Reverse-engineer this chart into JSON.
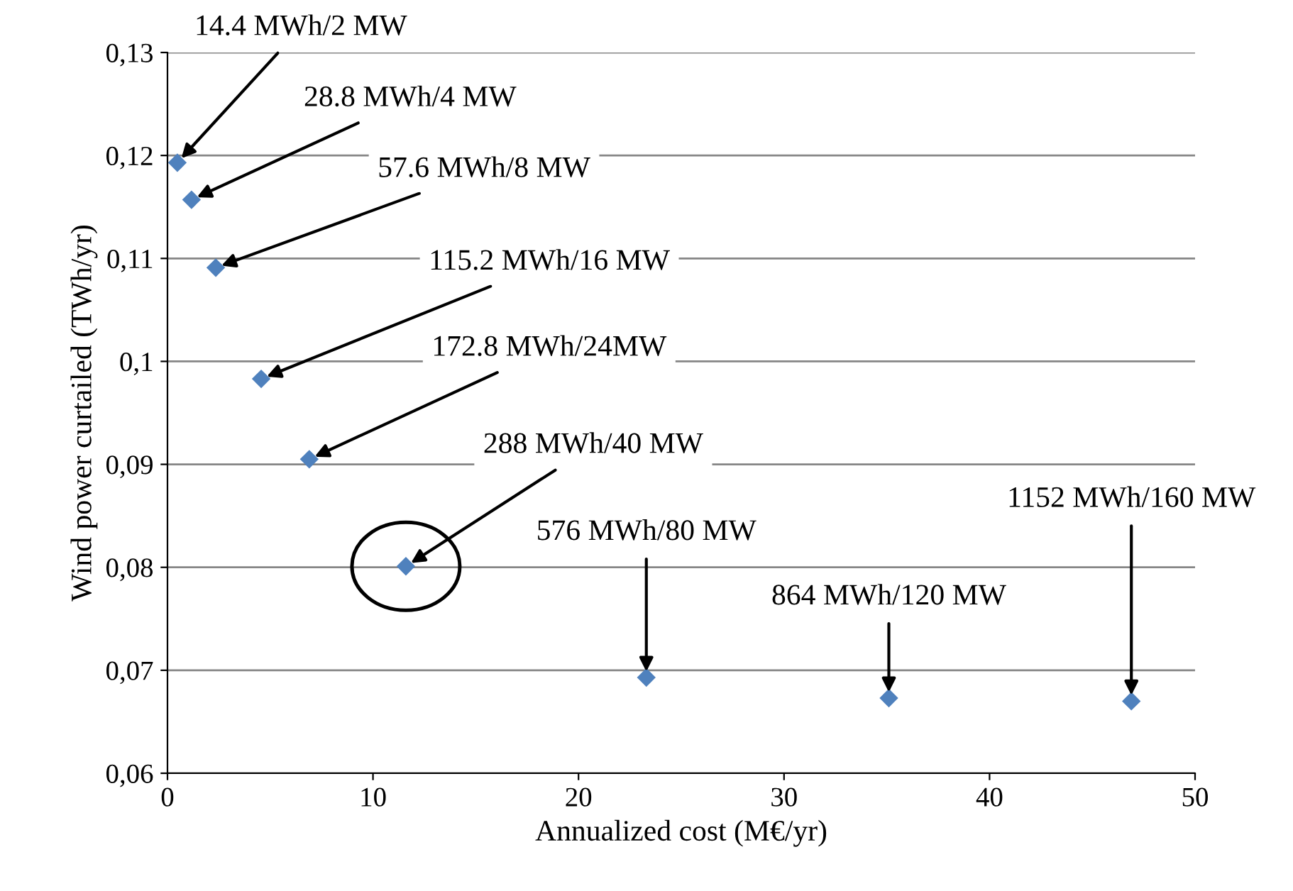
{
  "chart_data": {
    "type": "scatter",
    "xlabel": "Annualized cost (M€/yr)",
    "ylabel": "Wind power curtailed (TWh/yr)",
    "x": [
      0.48,
      1.17,
      2.35,
      4.56,
      6.9,
      11.6,
      23.3,
      35.1,
      46.9
    ],
    "series": [
      {
        "color": "#4f81bd",
        "values": [
          0.1193,
          0.1157,
          0.1091,
          0.0983,
          0.0905,
          0.0801,
          0.0693,
          0.0673,
          0.067
        ]
      }
    ],
    "marker": "diamond",
    "grid": "y",
    "xlim": [
      0,
      50
    ],
    "xticks": [
      0,
      10,
      20,
      30,
      40,
      50
    ],
    "ylim": [
      0.06,
      0.13
    ],
    "yticks": [
      {
        "value": 0.06,
        "label": "0,06"
      },
      {
        "value": 0.07,
        "label": "0,07"
      },
      {
        "value": 0.08,
        "label": "0,08"
      },
      {
        "value": 0.09,
        "label": "0,09"
      },
      {
        "value": 0.1,
        "label": "0,1"
      },
      {
        "value": 0.11,
        "label": "0,11"
      },
      {
        "value": 0.12,
        "label": "0,12"
      },
      {
        "value": 0.13,
        "label": "0,13"
      }
    ],
    "annotations": [
      {
        "text": "14.4 MWh/2 MW",
        "x": 0.48,
        "y": 0.1193
      },
      {
        "text": "28.8 MWh/4 MW",
        "x": 1.17,
        "y": 0.1157
      },
      {
        "text": "57.6 MWh/8 MW",
        "x": 2.35,
        "y": 0.1091
      },
      {
        "text": "115.2 MWh/16 MW",
        "x": 4.56,
        "y": 0.0983
      },
      {
        "text": "172.8 MWh/24MW",
        "x": 6.9,
        "y": 0.0905
      },
      {
        "text": "288 MWh/40 MW",
        "x": 11.6,
        "y": 0.0801
      },
      {
        "text": "576 MWh/80 MW",
        "x": 23.3,
        "y": 0.0693
      },
      {
        "text": "864 MWh/120 MW",
        "x": 35.1,
        "y": 0.0673
      },
      {
        "text": "1152 MWh/160 MW",
        "x": 46.9,
        "y": 0.067
      }
    ]
  }
}
